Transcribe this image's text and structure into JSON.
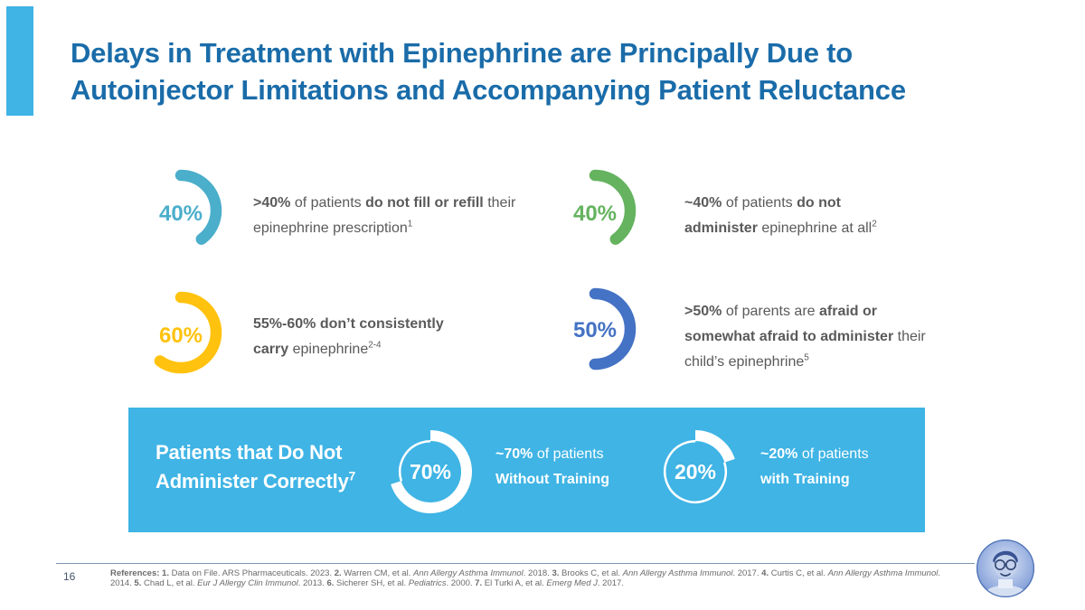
{
  "slide": {
    "title_line1": "Delays in Treatment with Epinephrine are Principally Due to",
    "title_line2": "Autoinjector Limitations and Accompanying Patient Reluctance",
    "title_color": "#1A6CA9",
    "accent_color": "#3FB4E5"
  },
  "stats": [
    {
      "value": "40%",
      "pct": 40,
      "color": "#4BAECB",
      "segments": [
        {
          "t": ">40%",
          "b": 1
        },
        {
          "t": " of patients ",
          "b": 0
        },
        {
          "t": "do not fill or refill",
          "b": 1
        },
        {
          "t": " their epinephrine prescription",
          "b": 0
        },
        {
          "t": "1",
          "sup": 1
        }
      ]
    },
    {
      "value": "40%",
      "pct": 40,
      "color": "#65B35F",
      "segments": [
        {
          "t": "~40%",
          "b": 1
        },
        {
          "t": " of patients ",
          "b": 0
        },
        {
          "t": "do not administer",
          "b": 1
        },
        {
          "t": " epinephrine at all",
          "b": 0
        },
        {
          "t": "2",
          "sup": 1
        }
      ]
    },
    {
      "value": "60%",
      "pct": 60,
      "color": "#FFC20E",
      "segments": [
        {
          "t": "55%-60% don’t consistently carry",
          "b": 1
        },
        {
          "t": " epinephrine",
          "b": 0
        },
        {
          "t": "2-4",
          "sup": 1
        }
      ]
    },
    {
      "value": "50%",
      "pct": 50,
      "color": "#4472C4",
      "segments": [
        {
          "t": ">50%",
          "b": 1
        },
        {
          "t": " of parents are ",
          "b": 0
        },
        {
          "t": "afraid or somewhat afraid to administer",
          "b": 1
        },
        {
          "t": " their child’s epinephrine",
          "b": 0
        },
        {
          "t": "5",
          "sup": 1
        }
      ]
    }
  ],
  "banner": {
    "bg_color": "#3FB4E5",
    "title_line1": "Patients that Do Not",
    "title_line2": "Administer Correctly",
    "title_sup": "7",
    "donuts": [
      {
        "value": "70%",
        "pct": 70,
        "lines": [
          [
            {
              "t": "~70%",
              "b": 1
            },
            {
              "t": " of patients",
              "b": 0
            }
          ],
          [
            {
              "t": "Without Training",
              "b": 1
            }
          ]
        ]
      },
      {
        "value": "20%",
        "pct": 20,
        "lines": [
          [
            {
              "t": "~20%",
              "b": 1
            },
            {
              "t": " of patients",
              "b": 0
            }
          ],
          [
            {
              "t": "with Training",
              "b": 1
            }
          ]
        ]
      }
    ]
  },
  "footer": {
    "page_number": "16",
    "references_segments": [
      {
        "t": "References: ",
        "b": 1
      },
      {
        "t": "1.",
        "b": 1
      },
      {
        "t": " Data on File. ARS Pharmaceuticals. 2023. "
      },
      {
        "t": "2.",
        "b": 1
      },
      {
        "t": " Warren CM, et al. "
      },
      {
        "t": "Ann Allergy Asthma Immunol",
        "i": 1
      },
      {
        "t": ". 2018. "
      },
      {
        "t": "3.",
        "b": 1
      },
      {
        "t": " Brooks C, et al. "
      },
      {
        "t": "Ann Allergy Asthma Immunol",
        "i": 1
      },
      {
        "t": ". 2017. "
      },
      {
        "t": "4.",
        "b": 1
      },
      {
        "t": " Curtis C, et al. "
      },
      {
        "t": "Ann Allergy Asthma Immunol",
        "i": 1
      },
      {
        "t": ". 2014. "
      },
      {
        "t": "5.",
        "b": 1
      },
      {
        "t": " Chad L, et al. "
      },
      {
        "t": "Eur J Allergy Clin Immunol",
        "i": 1
      },
      {
        "t": ". 2013. "
      },
      {
        "t": "6.",
        "b": 1
      },
      {
        "t": " Sicherer SH, et al. "
      },
      {
        "t": "Pediatrics",
        "i": 1
      },
      {
        "t": ". 2000. "
      },
      {
        "t": "7.",
        "b": 1
      },
      {
        "t": " El Turki A, et al. "
      },
      {
        "t": "Emerg Med J",
        "i": 1
      },
      {
        "t": ". 2017."
      }
    ]
  },
  "chart_data": [
    {
      "type": "pie",
      "style": "arc-gauge",
      "label": "do not fill or refill prescription",
      "value": 40,
      "color": "#4BAECB"
    },
    {
      "type": "pie",
      "style": "arc-gauge",
      "label": "do not administer epinephrine at all",
      "value": 40,
      "color": "#65B35F"
    },
    {
      "type": "pie",
      "style": "arc-gauge",
      "label": "don't consistently carry epinephrine",
      "value": 60,
      "color": "#FFC20E"
    },
    {
      "type": "pie",
      "style": "arc-gauge",
      "label": "parents afraid to administer",
      "value": 50,
      "color": "#4472C4"
    },
    {
      "type": "pie",
      "style": "donut",
      "label": "incorrect administration without training",
      "value": 70,
      "color": "#FFFFFF"
    },
    {
      "type": "pie",
      "style": "donut",
      "label": "incorrect administration with training",
      "value": 20,
      "color": "#FFFFFF"
    }
  ]
}
